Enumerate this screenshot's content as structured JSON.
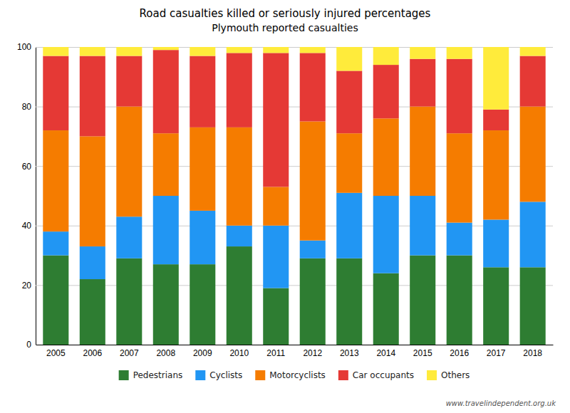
{
  "chart_data": {
    "type": "bar",
    "stacked": true,
    "title": "Road casualties killed or seriously injured percentages",
    "subtitle": "Plymouth reported casualties",
    "categories": [
      "2005",
      "2006",
      "2007",
      "2008",
      "2009",
      "2010",
      "2011",
      "2012",
      "2013",
      "2014",
      "2015",
      "2016",
      "2017",
      "2018"
    ],
    "series": [
      {
        "name": "Pedestrians",
        "color": "#2e7d32",
        "values": [
          30,
          22,
          29,
          27,
          27,
          33,
          19,
          29,
          29,
          24,
          30,
          30,
          26,
          26
        ]
      },
      {
        "name": "Cyclists",
        "color": "#2196f3",
        "values": [
          8,
          11,
          14,
          23,
          18,
          7,
          21,
          6,
          22,
          26,
          20,
          11,
          16,
          22
        ]
      },
      {
        "name": "Motorcyclists",
        "color": "#f57c00",
        "values": [
          34,
          37,
          37,
          21,
          28,
          33,
          13,
          40,
          20,
          26,
          30,
          30,
          30,
          32
        ]
      },
      {
        "name": "Car occupants",
        "color": "#e53935",
        "values": [
          25,
          27,
          17,
          28,
          24,
          25,
          45,
          23,
          21,
          18,
          16,
          25,
          7,
          17
        ]
      },
      {
        "name": "Others",
        "color": "#ffeb3b",
        "values": [
          3,
          3,
          3,
          1,
          3,
          2,
          2,
          2,
          8,
          6,
          4,
          4,
          21,
          3
        ]
      }
    ],
    "ylim": [
      0,
      100
    ],
    "yticks": [
      0,
      20,
      40,
      60,
      80,
      100
    ],
    "grid": true,
    "legend": "bottom",
    "annotations": [
      "www.travelindependent.org.uk"
    ]
  }
}
